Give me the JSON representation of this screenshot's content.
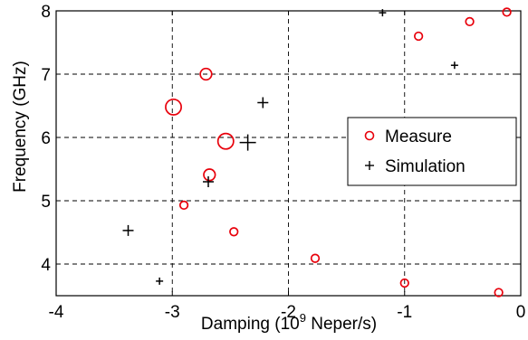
{
  "chart_data": {
    "type": "scatter",
    "xlabel": "Damping (10",
    "xlabel_sup": "9",
    "xlabel_suffix": " Neper/s)",
    "ylabel": "Frequency (GHz)",
    "xlim": [
      -4,
      0
    ],
    "ylim": [
      3.5,
      8
    ],
    "xticks": [
      -4,
      -3,
      -2,
      -1,
      0
    ],
    "yticks": [
      4,
      5,
      6,
      7,
      8
    ],
    "grid": true,
    "legend_position": "right",
    "series": [
      {
        "name": "Measure",
        "marker": "circle",
        "color": "#e8000b",
        "points": [
          {
            "x": -2.99,
            "y": 6.48,
            "size": "large"
          },
          {
            "x": -2.54,
            "y": 5.94,
            "size": "large"
          },
          {
            "x": -2.71,
            "y": 7.0,
            "size": "medium"
          },
          {
            "x": -2.68,
            "y": 5.41,
            "size": "medium"
          },
          {
            "x": -2.9,
            "y": 4.93,
            "size": "small"
          },
          {
            "x": -2.47,
            "y": 4.51,
            "size": "small"
          },
          {
            "x": -1.77,
            "y": 4.09,
            "size": "small"
          },
          {
            "x": -1.0,
            "y": 3.7,
            "size": "small"
          },
          {
            "x": -0.19,
            "y": 3.55,
            "size": "small"
          },
          {
            "x": -0.88,
            "y": 7.6,
            "size": "small"
          },
          {
            "x": -0.44,
            "y": 7.83,
            "size": "small"
          },
          {
            "x": -0.12,
            "y": 7.98,
            "size": "small"
          }
        ]
      },
      {
        "name": "Simulation",
        "marker": "plus",
        "color": "#000000",
        "points": [
          {
            "x": -2.35,
            "y": 5.92,
            "size": "large"
          },
          {
            "x": -2.22,
            "y": 6.55,
            "size": "medium"
          },
          {
            "x": -2.69,
            "y": 5.3,
            "size": "medium"
          },
          {
            "x": -3.38,
            "y": 4.53,
            "size": "medium"
          },
          {
            "x": -3.11,
            "y": 3.73,
            "size": "small"
          },
          {
            "x": -1.19,
            "y": 7.97,
            "size": "small"
          },
          {
            "x": -0.57,
            "y": 7.14,
            "size": "small"
          }
        ]
      }
    ]
  }
}
